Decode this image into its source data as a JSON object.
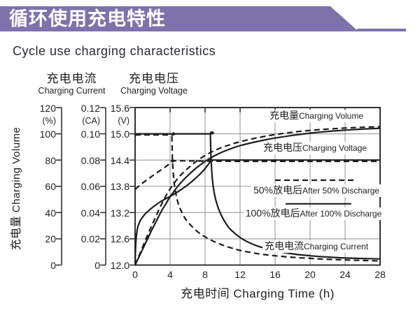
{
  "banner": {
    "title": "循环使用充电特性"
  },
  "subtitle": "Cycle use charging characteristics",
  "colors": {
    "banner": "#7e72ad",
    "curve": "#1c1c1c",
    "grid": "#9a9a9a",
    "axis": "#333333"
  },
  "headers": {
    "current_cjk": "充电电流",
    "current_en": "Charging Current",
    "voltage_cjk": "充电电压",
    "voltage_en": "Charging Voltage"
  },
  "y_axis_title": {
    "cjk": "充电量",
    "en": "Charging Volume"
  },
  "x_axis_title": "充电时间 Charging Time (h)",
  "plot_labels": {
    "volume": {
      "cjk": "充电量",
      "en": "Charging Volume"
    },
    "voltage": {
      "cjk": "充电电压",
      "en": "Charging Voltage"
    },
    "legend50": {
      "big": "50%放电后",
      "small": "After 50% Discharge"
    },
    "legend100": {
      "big": "100%放电后",
      "small": "After 100% Discharge"
    },
    "current": {
      "cjk": "充电电流",
      "en": "Charging Current"
    }
  },
  "chart_data": {
    "type": "line",
    "title": "Cycle use charging characteristics",
    "xlabel": "充电时间 Charging Time (h)",
    "xlim": [
      0,
      28
    ],
    "x_ticks": [
      0,
      4,
      8,
      12,
      16,
      20,
      24,
      28
    ],
    "grid": true,
    "axes": {
      "volume": {
        "unit": "%",
        "range": [
          0,
          120
        ],
        "ticks": [
          "120",
          "(%)",
          "100",
          "80",
          "60",
          "40",
          "20",
          "0"
        ]
      },
      "current": {
        "unit": "CA",
        "range": [
          0,
          0.12
        ],
        "ticks": [
          "0.12",
          "(CA)",
          "0.10",
          "0.08",
          "0.06",
          "0.04",
          "0.02",
          "0"
        ]
      },
      "voltage": {
        "unit": "V",
        "range": [
          12.0,
          15.6
        ],
        "ticks": [
          "15.6",
          "(V)",
          "15.0",
          "14.4",
          "13.8",
          "13.2",
          "12.6",
          "12.0"
        ]
      }
    },
    "gridlines": {
      "x_hours": [
        4,
        8,
        12,
        16,
        20,
        24
      ],
      "y_volts": [
        12.6,
        13.2,
        13.8,
        14.4,
        15.0
      ]
    },
    "series": [
      {
        "name": "charging-volume-after-100-discharge",
        "unit": "percent",
        "style": "solid",
        "points": [
          [
            0,
            0
          ],
          [
            0.5,
            7
          ],
          [
            1,
            14
          ],
          [
            1.5,
            21
          ],
          [
            2,
            28
          ],
          [
            2.5,
            34.5
          ],
          [
            3,
            41
          ],
          [
            3.5,
            46.5
          ],
          [
            4,
            52
          ],
          [
            5,
            61
          ],
          [
            6,
            68
          ],
          [
            7,
            74
          ],
          [
            8,
            79
          ],
          [
            9,
            83
          ],
          [
            10,
            86.2
          ],
          [
            11,
            88.8
          ],
          [
            12,
            91
          ],
          [
            14,
            94.2
          ],
          [
            16,
            96.8
          ],
          [
            18,
            98.8
          ],
          [
            20,
            100.5
          ],
          [
            22,
            101.8
          ],
          [
            24,
            102.8
          ],
          [
            26,
            103.6
          ],
          [
            28,
            104.2
          ]
        ]
      },
      {
        "name": "charging-volume-after-50-discharge",
        "unit": "percent",
        "style": "dashed",
        "points": [
          [
            0,
            0
          ],
          [
            0.5,
            8
          ],
          [
            1,
            16
          ],
          [
            1.5,
            24
          ],
          [
            2,
            31.5
          ],
          [
            2.5,
            39
          ],
          [
            3,
            46
          ],
          [
            3.5,
            52.5
          ],
          [
            4,
            58
          ],
          [
            5,
            67
          ],
          [
            6,
            73.5
          ],
          [
            7,
            79
          ],
          [
            8,
            83.5
          ],
          [
            9,
            87
          ],
          [
            10,
            89.8
          ],
          [
            11,
            92
          ],
          [
            12,
            94
          ],
          [
            14,
            97
          ],
          [
            16,
            99.4
          ],
          [
            18,
            101.2
          ],
          [
            20,
            102.6
          ],
          [
            22,
            103.6
          ],
          [
            24,
            104.4
          ],
          [
            26,
            105
          ],
          [
            28,
            105.4
          ]
        ]
      },
      {
        "name": "charging-voltage-after-100-discharge",
        "unit": "v",
        "style": "solid",
        "points": [
          [
            0,
            12.05
          ],
          [
            0.08,
            12.5
          ],
          [
            0.25,
            12.82
          ],
          [
            0.5,
            12.98
          ],
          [
            0.8,
            13.08
          ],
          [
            1.2,
            13.18
          ],
          [
            1.7,
            13.27
          ],
          [
            2.2,
            13.35
          ],
          [
            3,
            13.46
          ],
          [
            4,
            13.57
          ],
          [
            5,
            13.69
          ],
          [
            6,
            13.83
          ],
          [
            7,
            14.0
          ],
          [
            7.8,
            14.16
          ],
          [
            8.4,
            14.31
          ],
          [
            8.7,
            14.4
          ],
          [
            8.7,
            14.4
          ],
          [
            12,
            14.4
          ],
          [
            20,
            14.4
          ],
          [
            28,
            14.4
          ]
        ]
      },
      {
        "name": "charging-voltage-after-50-discharge",
        "unit": "v",
        "style": "dashed",
        "points": [
          [
            0,
            13.73
          ],
          [
            0.7,
            13.85
          ],
          [
            1.5,
            13.97
          ],
          [
            2.5,
            14.11
          ],
          [
            3.5,
            14.25
          ],
          [
            4.1,
            14.34
          ],
          [
            4.5,
            14.385
          ],
          [
            4.5,
            14.385
          ],
          [
            12,
            14.37
          ],
          [
            20,
            14.37
          ],
          [
            28,
            14.37
          ]
        ]
      },
      {
        "name": "charging-current-after-100-discharge",
        "unit": "ca",
        "style": "solid",
        "points": [
          [
            0,
            0.1
          ],
          [
            4,
            0.1
          ],
          [
            8.6,
            0.1
          ],
          [
            8.6,
            0.1
          ],
          [
            8.68,
            0.082
          ],
          [
            8.82,
            0.066
          ],
          [
            9.1,
            0.053
          ],
          [
            9.5,
            0.0435
          ],
          [
            10,
            0.036
          ],
          [
            10.5,
            0.0305
          ],
          [
            11,
            0.0265
          ],
          [
            12,
            0.021
          ],
          [
            13,
            0.0172
          ],
          [
            14,
            0.0145
          ],
          [
            15,
            0.0125
          ],
          [
            16,
            0.0108
          ],
          [
            18,
            0.0085
          ],
          [
            20,
            0.0071
          ],
          [
            22,
            0.0061
          ],
          [
            24,
            0.0054
          ],
          [
            26,
            0.005
          ],
          [
            28,
            0.0047
          ]
        ]
      },
      {
        "name": "charging-current-after-50-discharge",
        "unit": "ca",
        "style": "dashed",
        "points": [
          [
            0,
            0.0992
          ],
          [
            4.2,
            0.0992
          ],
          [
            4.2,
            0.0992
          ],
          [
            4.28,
            0.079
          ],
          [
            4.45,
            0.0635
          ],
          [
            4.7,
            0.053
          ],
          [
            5,
            0.0455
          ],
          [
            5.5,
            0.038
          ],
          [
            6,
            0.033
          ],
          [
            7,
            0.0262
          ],
          [
            8,
            0.0215
          ],
          [
            9,
            0.018
          ],
          [
            10,
            0.0152
          ],
          [
            11,
            0.013
          ],
          [
            12,
            0.0112
          ],
          [
            14,
            0.0087
          ],
          [
            16,
            0.0071
          ],
          [
            18,
            0.0059
          ],
          [
            20,
            0.0051
          ],
          [
            22,
            0.0044
          ],
          [
            24,
            0.0039
          ],
          [
            26,
            0.0035
          ],
          [
            28,
            0.0032
          ]
        ]
      }
    ],
    "legend_samples": [
      {
        "style": "dashed",
        "x1": 16,
        "x2": 25,
        "v": 13.94,
        "meaning": "After 50% Discharge"
      },
      {
        "style": "solid",
        "x1": 17.2,
        "x2": 24.7,
        "v": 13.4,
        "meaning": "After 100% Discharge"
      }
    ]
  }
}
